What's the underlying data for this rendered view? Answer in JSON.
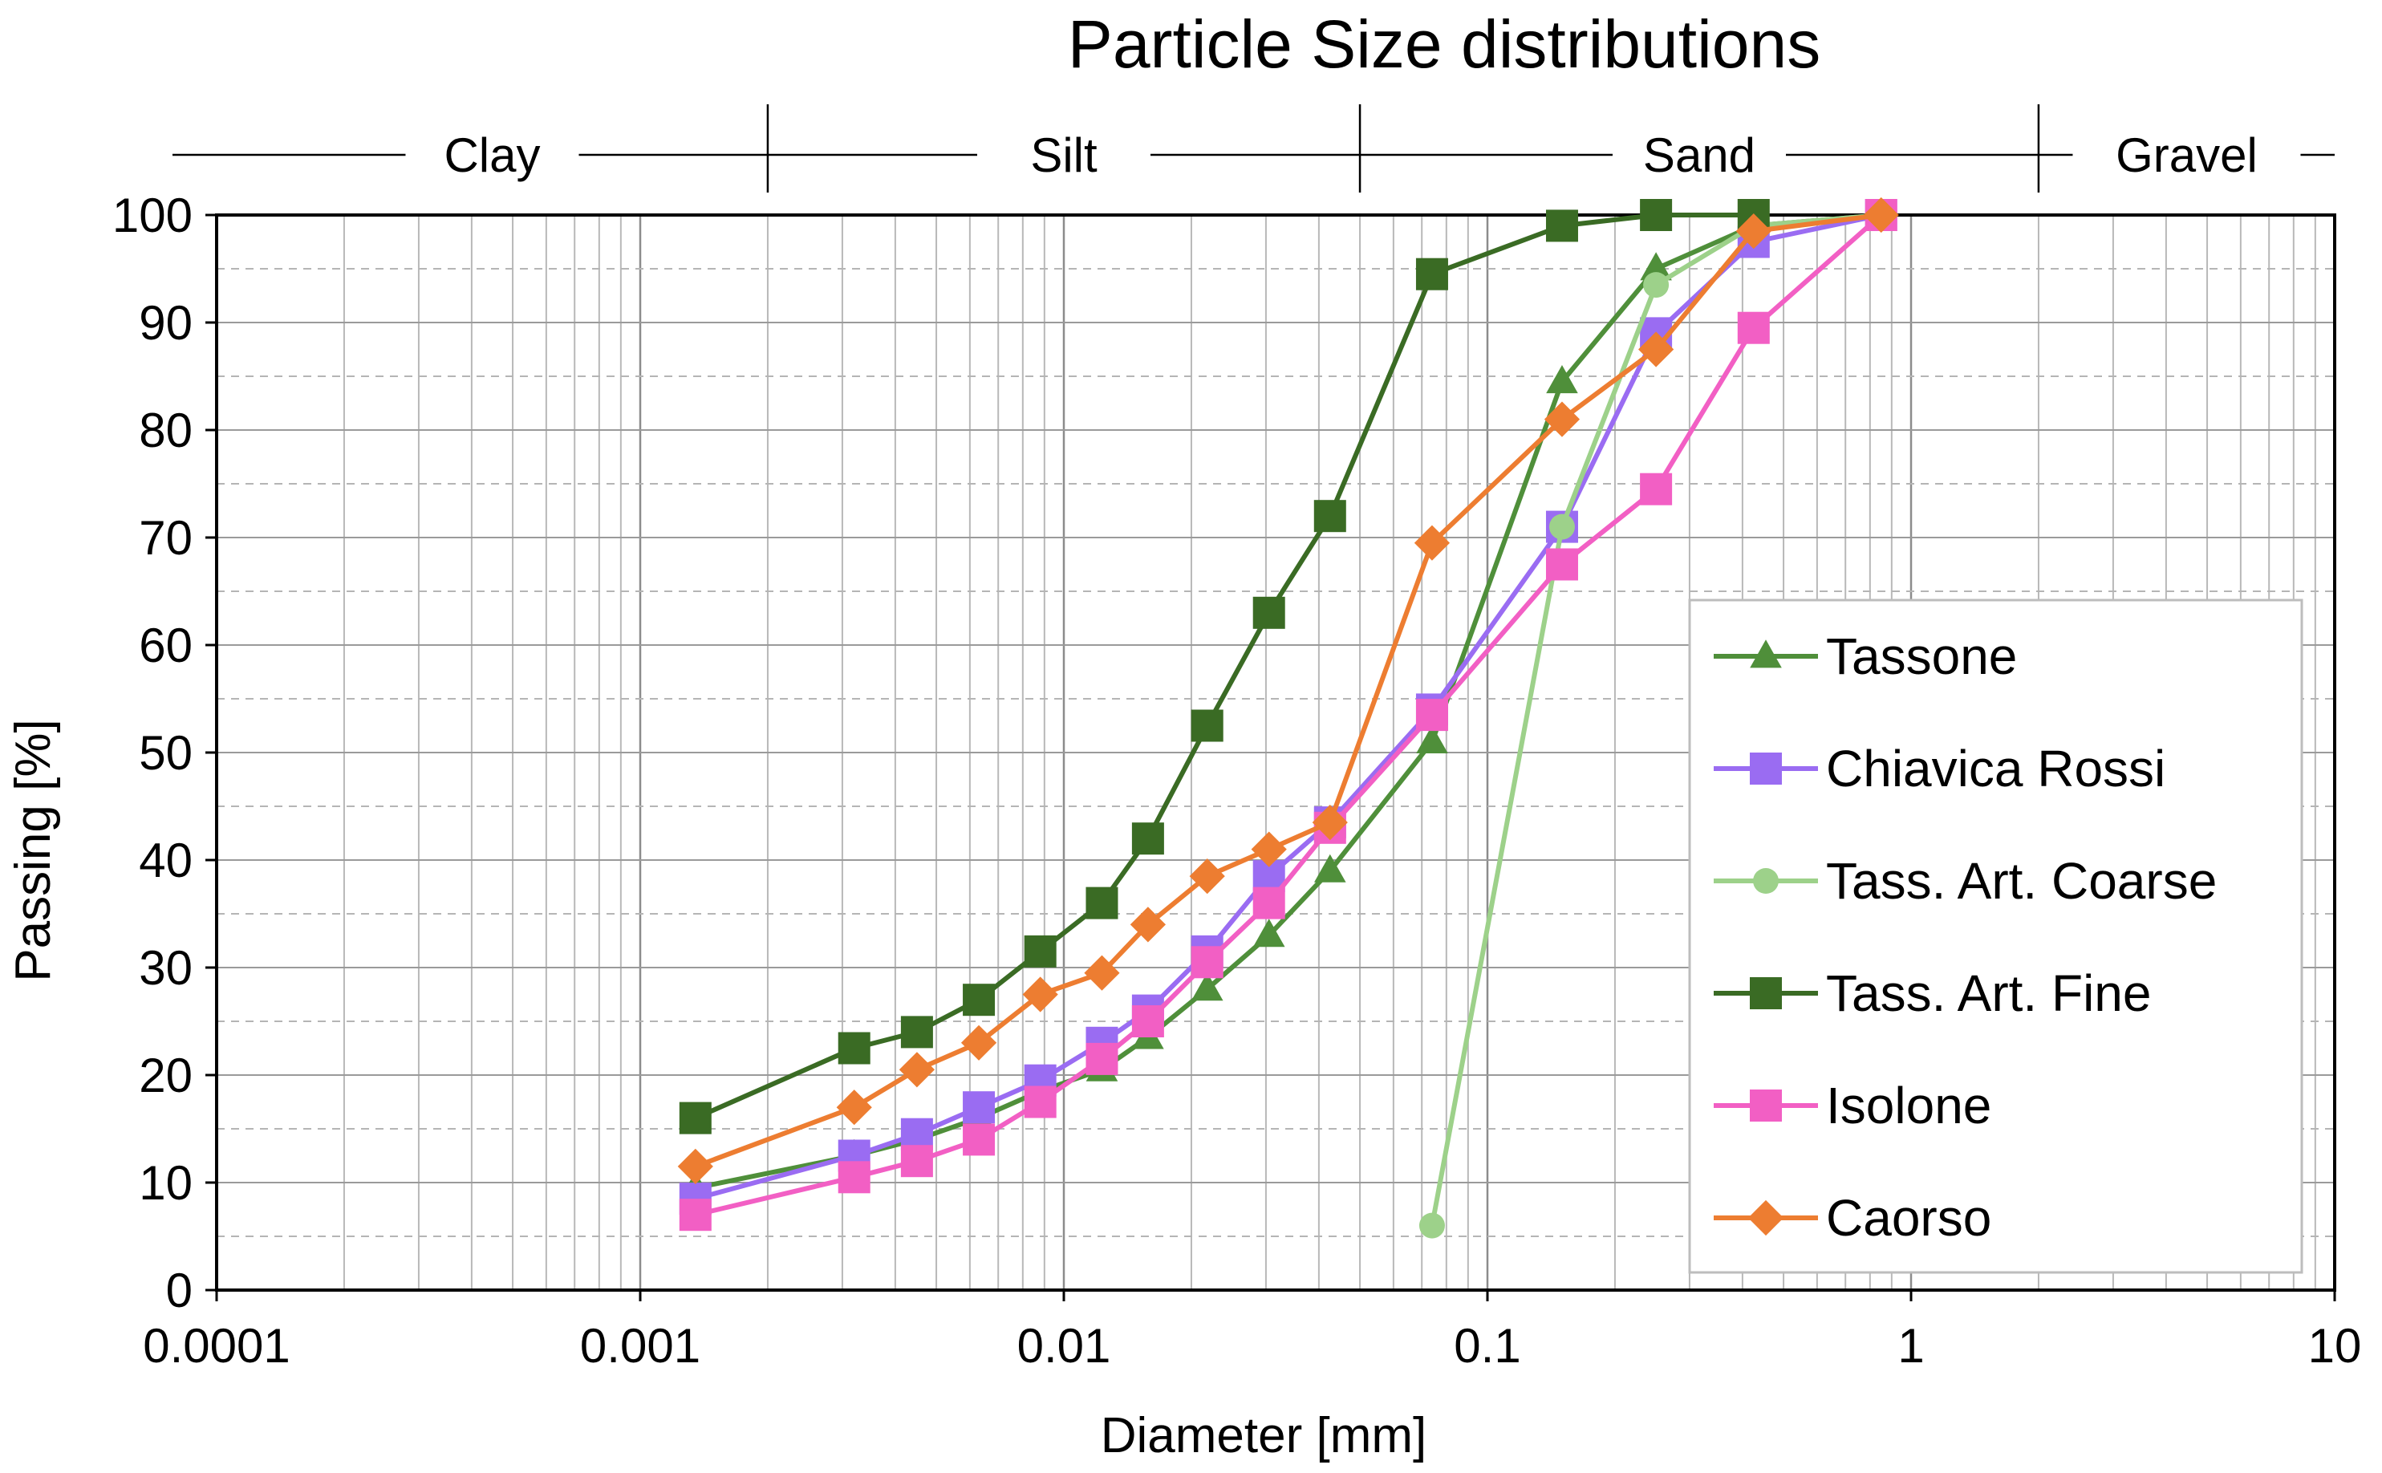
{
  "chart_data": {
    "type": "line",
    "title": "Particle Size distributions",
    "xlabel": "Diameter [mm]",
    "ylabel": "Passing [%]",
    "x_scale": "log",
    "xlim": [
      0.0001,
      10
    ],
    "ylim": [
      0,
      100
    ],
    "x_ticks": [
      "0.0001",
      "0.001",
      "0.01",
      "0.1",
      "1",
      "10"
    ],
    "y_ticks": [
      "0",
      "10",
      "20",
      "30",
      "40",
      "50",
      "60",
      "70",
      "80",
      "90",
      "100"
    ],
    "grid": true,
    "legend_position": "right",
    "classification": [
      {
        "label": "Clay",
        "from": 0.0001,
        "to": 0.002
      },
      {
        "label": "Silt",
        "from": 0.002,
        "to": 0.05
      },
      {
        "label": "Sand",
        "from": 0.05,
        "to": 2
      },
      {
        "label": "Gravel",
        "from": 2,
        "to": 10
      }
    ],
    "series": [
      {
        "name": "Tassone",
        "color": "#4f8f3a",
        "marker": "triangle",
        "x": [
          0.00135,
          0.0032,
          0.0045,
          0.0063,
          0.0088,
          0.0123,
          0.0158,
          0.0218,
          0.0305,
          0.0425,
          0.074,
          0.15,
          0.25,
          0.425,
          0.85
        ],
        "y": [
          9.5,
          12.5,
          14,
          16,
          18.5,
          20.5,
          23.5,
          28,
          33,
          39,
          51,
          84.5,
          95,
          99,
          100
        ]
      },
      {
        "name": "Chiavica Rossi",
        "color": "#9a6cf2",
        "marker": "square",
        "x": [
          0.00135,
          0.0032,
          0.0045,
          0.0063,
          0.0088,
          0.0123,
          0.0158,
          0.0218,
          0.0305,
          0.0425,
          0.074,
          0.15,
          0.25,
          0.425,
          0.85
        ],
        "y": [
          8.5,
          12.5,
          14.5,
          17,
          19.5,
          23,
          26,
          31.5,
          38.5,
          43.5,
          54,
          71,
          89,
          97.5,
          100
        ]
      },
      {
        "name": "Tass. Art. Coarse",
        "color": "#9dd18a",
        "marker": "circle",
        "x": [
          0.074,
          0.15,
          0.25,
          0.425,
          0.85
        ],
        "y": [
          6,
          71,
          93.5,
          99,
          100
        ]
      },
      {
        "name": "Tass. Art. Fine",
        "color": "#3a6b24",
        "marker": "square",
        "x": [
          0.00135,
          0.0032,
          0.0045,
          0.0063,
          0.0088,
          0.0123,
          0.0158,
          0.0218,
          0.0305,
          0.0425,
          0.074,
          0.15,
          0.25,
          0.425
        ],
        "y": [
          16,
          22.5,
          24,
          27,
          31.5,
          36,
          42,
          52.5,
          63,
          72,
          94.5,
          99,
          100,
          100
        ]
      },
      {
        "name": "Isolone",
        "color": "#f25fc4",
        "marker": "square",
        "x": [
          0.00135,
          0.0032,
          0.0045,
          0.0063,
          0.0088,
          0.0123,
          0.0158,
          0.0218,
          0.0305,
          0.0425,
          0.074,
          0.15,
          0.25,
          0.425,
          0.85
        ],
        "y": [
          7,
          10.5,
          12,
          14,
          17.5,
          21.5,
          25,
          30.5,
          36,
          43,
          53.5,
          67.5,
          74.5,
          89.5,
          100
        ]
      },
      {
        "name": "Caorso",
        "color": "#ed7d31",
        "marker": "diamond",
        "x": [
          0.00135,
          0.0032,
          0.0045,
          0.0063,
          0.0088,
          0.0123,
          0.0158,
          0.0218,
          0.0305,
          0.0425,
          0.074,
          0.15,
          0.25,
          0.425,
          0.85
        ],
        "y": [
          11.5,
          17,
          20.5,
          23,
          27.5,
          29.5,
          34,
          38.5,
          41,
          43.5,
          69.5,
          81,
          87.5,
          98.5,
          100
        ]
      }
    ]
  }
}
